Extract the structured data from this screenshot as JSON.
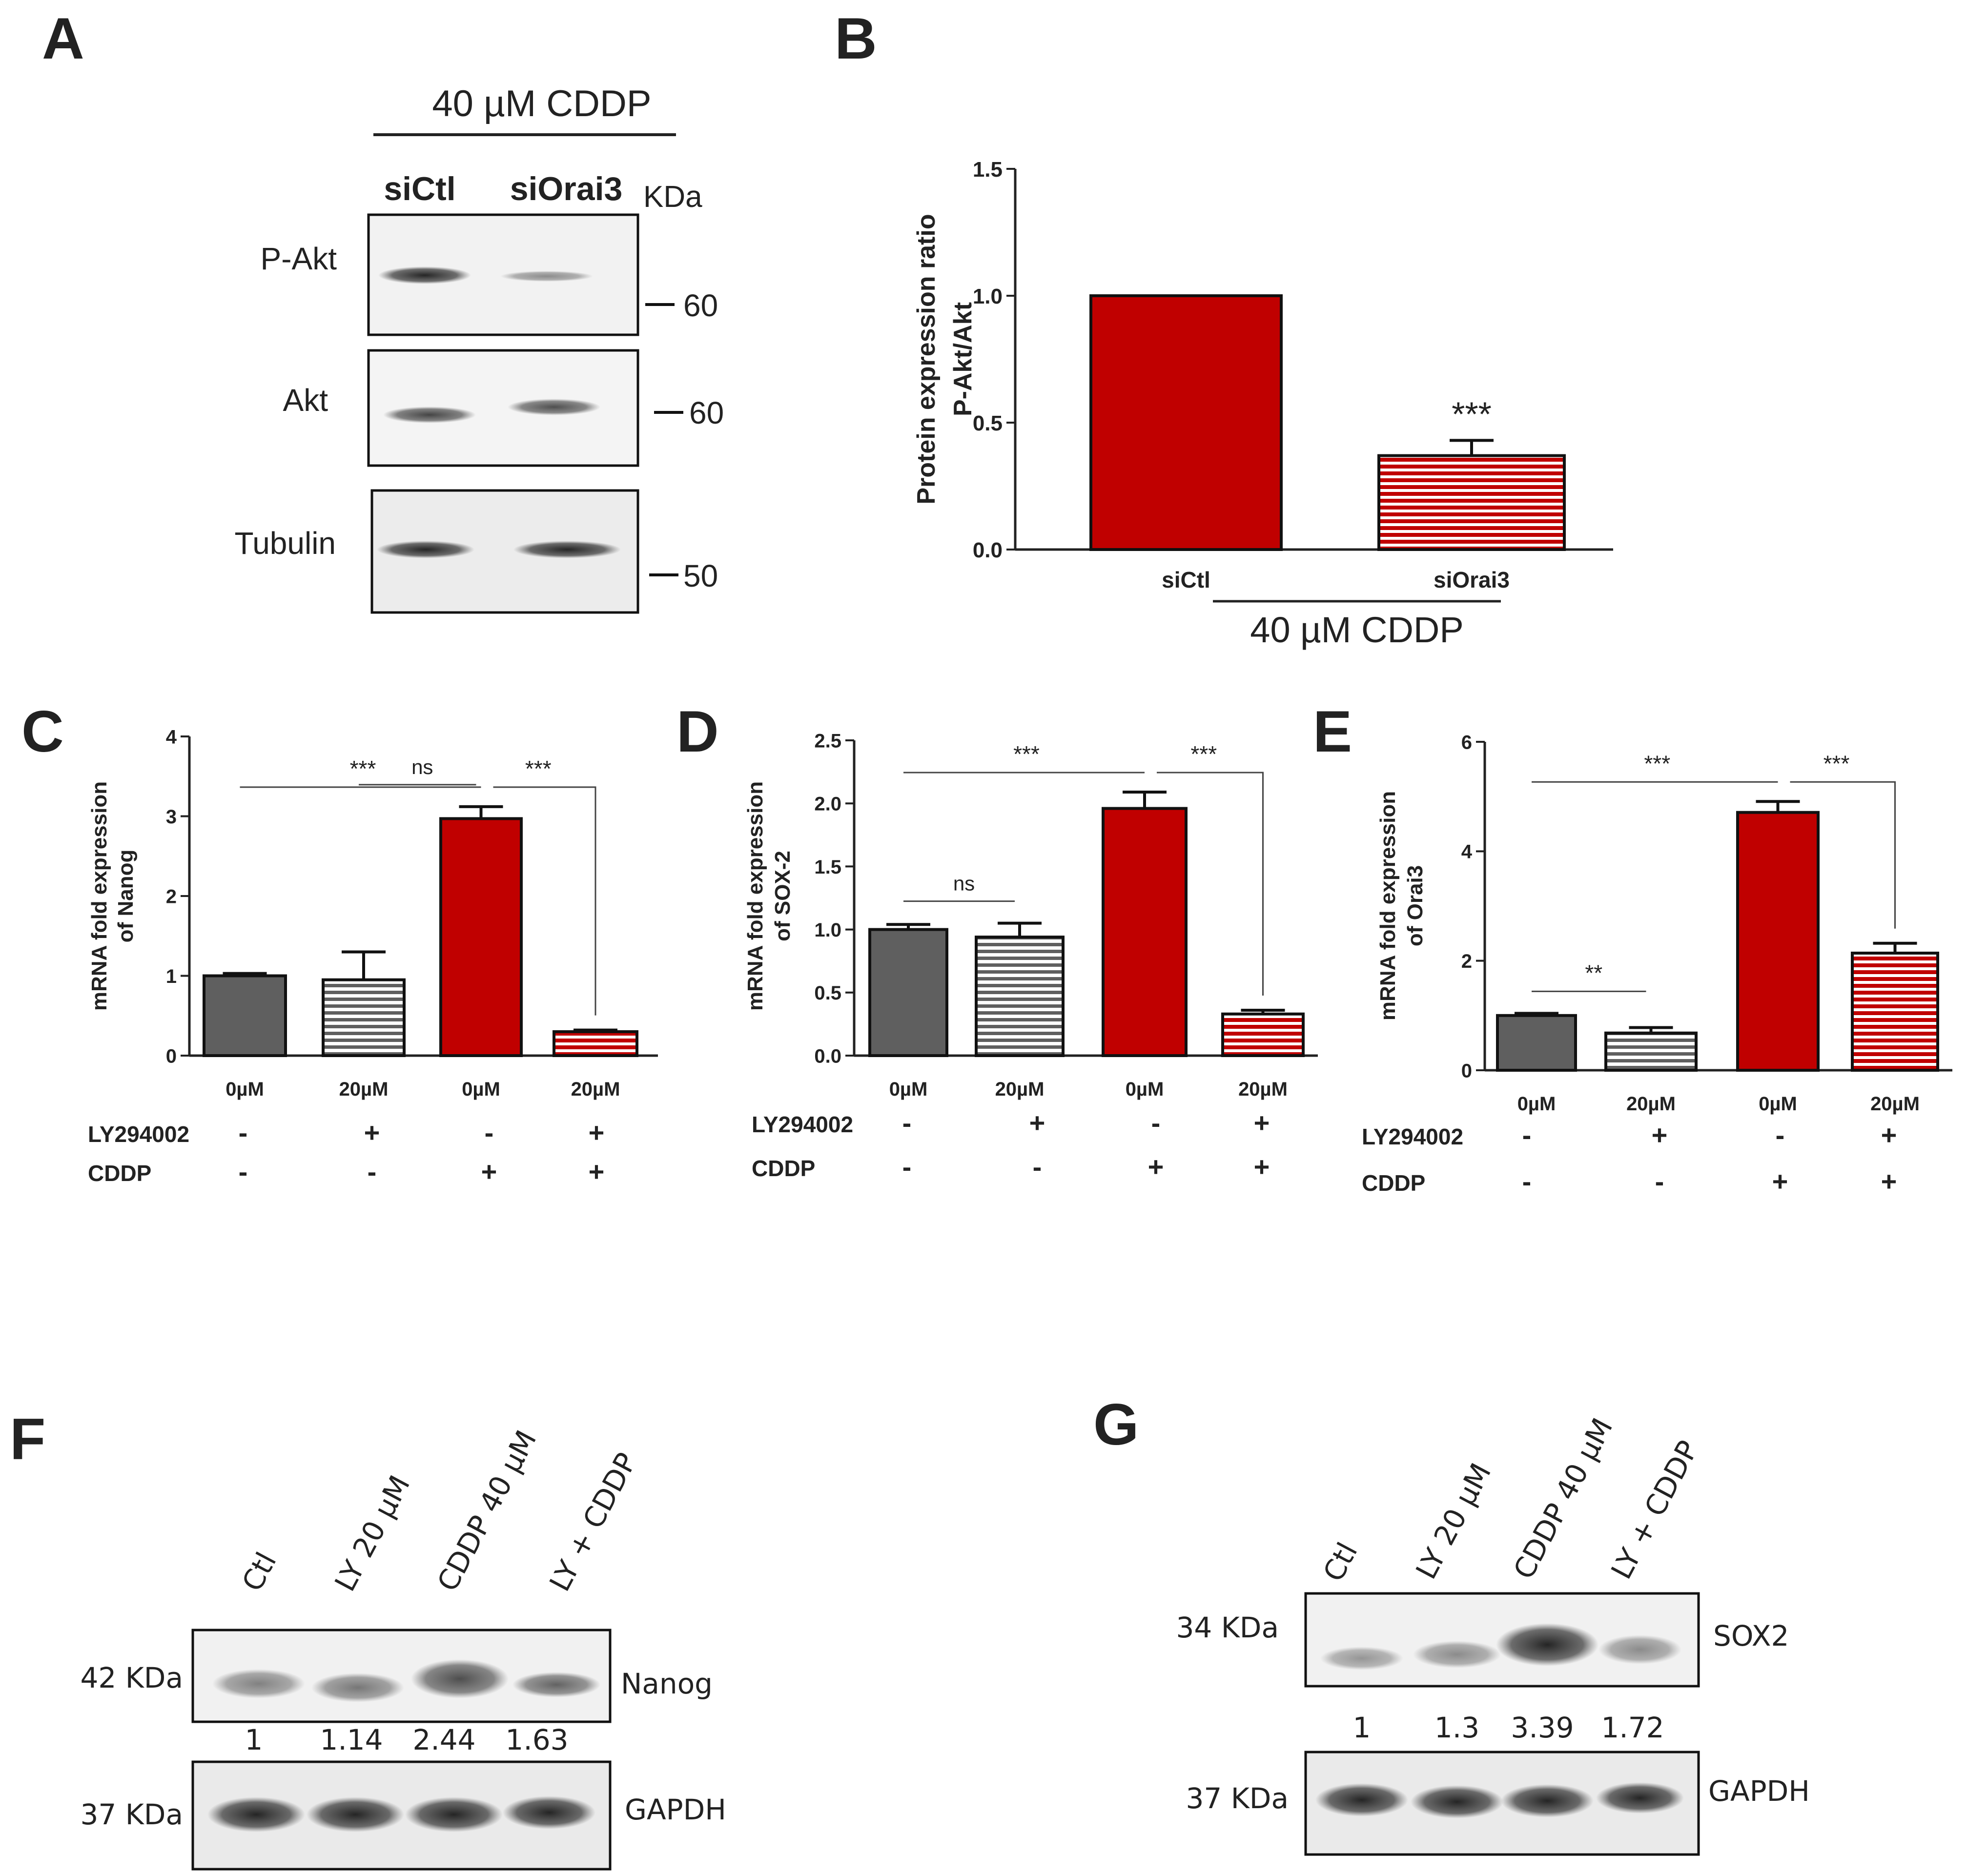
{
  "panels": {
    "A": "A",
    "B": "B",
    "C": "C",
    "D": "D",
    "E": "E",
    "F": "F",
    "G": "G"
  },
  "panel_a": {
    "treatment": "40 µM CDDP",
    "lanes": [
      "siCtl",
      "siOrai3"
    ],
    "kda_header": "KDa",
    "blots": [
      {
        "label": "P-Akt",
        "marker": "60"
      },
      {
        "label": "Akt",
        "marker": "60"
      },
      {
        "label": "Tubulin",
        "marker": "50"
      }
    ]
  },
  "panel_f": {
    "lanes": [
      "Ctl",
      "LY 20 µM",
      "CDDP 40 µM",
      "LY + CDDP"
    ],
    "blots": [
      {
        "protein": "Nanog",
        "kda": "42 KDa"
      },
      {
        "protein": "GAPDH",
        "kda": "37 KDa"
      }
    ],
    "quant": [
      "1",
      "1.14",
      "2.44",
      "1.63"
    ]
  },
  "panel_g": {
    "lanes": [
      "Ctl",
      "LY 20 µM",
      "CDDP 40 µM",
      "LY + CDDP"
    ],
    "blots": [
      {
        "protein": "SOX2",
        "kda": "34 KDa"
      },
      {
        "protein": "GAPDH",
        "kda": "37 KDa"
      }
    ],
    "quant": [
      "1",
      "1.3",
      "3.39",
      "1.72"
    ]
  },
  "colors": {
    "gray": "#5f5f5f",
    "red": "#c00000",
    "axis": "#222222"
  },
  "chart_data": [
    {
      "panel": "B",
      "type": "bar",
      "categories": [
        "siCtl",
        "siOrai3"
      ],
      "values": [
        1.0,
        0.37
      ],
      "errors": [
        0,
        0.06
      ],
      "fills": [
        "red-solid",
        "red-striped"
      ],
      "ylabel_lines": [
        "Protein expression ratio",
        "P-Akt/Akt"
      ],
      "ylim": [
        0,
        1.5
      ],
      "yticks": [
        "0.0",
        "0.5",
        "1.0",
        "1.5"
      ],
      "group_label": "40 µM CDDP",
      "significance": [
        {
          "bar": 1,
          "label": "***"
        }
      ]
    },
    {
      "panel": "C",
      "type": "bar",
      "categories": [
        "0µM",
        "20µM",
        "0µM",
        "20µM"
      ],
      "values": [
        1.0,
        0.95,
        2.97,
        0.3
      ],
      "errors": [
        0.03,
        0.35,
        0.15,
        0.02
      ],
      "fills": [
        "gray-solid",
        "gray-striped",
        "red-solid",
        "red-striped"
      ],
      "ylabel_lines": [
        "mRNA fold expression",
        "of Nanog"
      ],
      "ylim": [
        0,
        4
      ],
      "yticks": [
        "0",
        "1",
        "2",
        "3",
        "4"
      ],
      "conditions": [
        {
          "name": "LY294002",
          "signs": [
            "-",
            "+",
            "-",
            "+"
          ]
        },
        {
          "name": "CDDP",
          "signs": [
            "-",
            "-",
            "+",
            "+"
          ]
        }
      ],
      "significance": [
        {
          "from": 1,
          "to": 2,
          "label": "ns"
        },
        {
          "from": 0,
          "to": 2,
          "label": "***"
        },
        {
          "from": 2,
          "to": 3,
          "label": "***"
        }
      ]
    },
    {
      "panel": "D",
      "type": "bar",
      "categories": [
        "0µM",
        "20µM",
        "0µM",
        "20µM"
      ],
      "values": [
        1.0,
        0.94,
        1.96,
        0.33
      ],
      "errors": [
        0.04,
        0.11,
        0.13,
        0.03
      ],
      "fills": [
        "gray-solid",
        "gray-striped",
        "red-solid",
        "red-striped"
      ],
      "ylabel_lines": [
        "mRNA fold expression",
        "of SOX-2"
      ],
      "ylim": [
        0,
        2.5
      ],
      "yticks": [
        "0.0",
        "0.5",
        "1.0",
        "1.5",
        "2.0",
        "2.5"
      ],
      "conditions": [
        {
          "name": "LY294002",
          "signs": [
            "-",
            "+",
            "-",
            "+"
          ]
        },
        {
          "name": "CDDP",
          "signs": [
            "-",
            "-",
            "+",
            "+"
          ]
        }
      ],
      "significance": [
        {
          "from": 0,
          "to": 1,
          "label": "ns"
        },
        {
          "from": 0,
          "to": 2,
          "label": "***"
        },
        {
          "from": 2,
          "to": 3,
          "label": "***"
        }
      ]
    },
    {
      "panel": "E",
      "type": "bar",
      "categories": [
        "0µM",
        "20µM",
        "0µM",
        "20µM"
      ],
      "values": [
        1.0,
        0.68,
        4.71,
        2.14
      ],
      "errors": [
        0.04,
        0.1,
        0.2,
        0.18
      ],
      "fills": [
        "gray-solid",
        "gray-striped",
        "red-solid",
        "red-striped"
      ],
      "ylabel_lines": [
        "mRNA fold expression",
        "of Orai3"
      ],
      "ylim": [
        0,
        6
      ],
      "yticks": [
        "0",
        "2",
        "4",
        "6"
      ],
      "conditions": [
        {
          "name": "LY294002",
          "signs": [
            "-",
            "+",
            "-",
            "+"
          ]
        },
        {
          "name": "CDDP",
          "signs": [
            "-",
            "-",
            "+",
            "+"
          ]
        }
      ],
      "significance": [
        {
          "from": 0,
          "to": 1,
          "label": "**"
        },
        {
          "from": 0,
          "to": 2,
          "label": "***"
        },
        {
          "from": 2,
          "to": 3,
          "label": "***"
        }
      ]
    }
  ]
}
